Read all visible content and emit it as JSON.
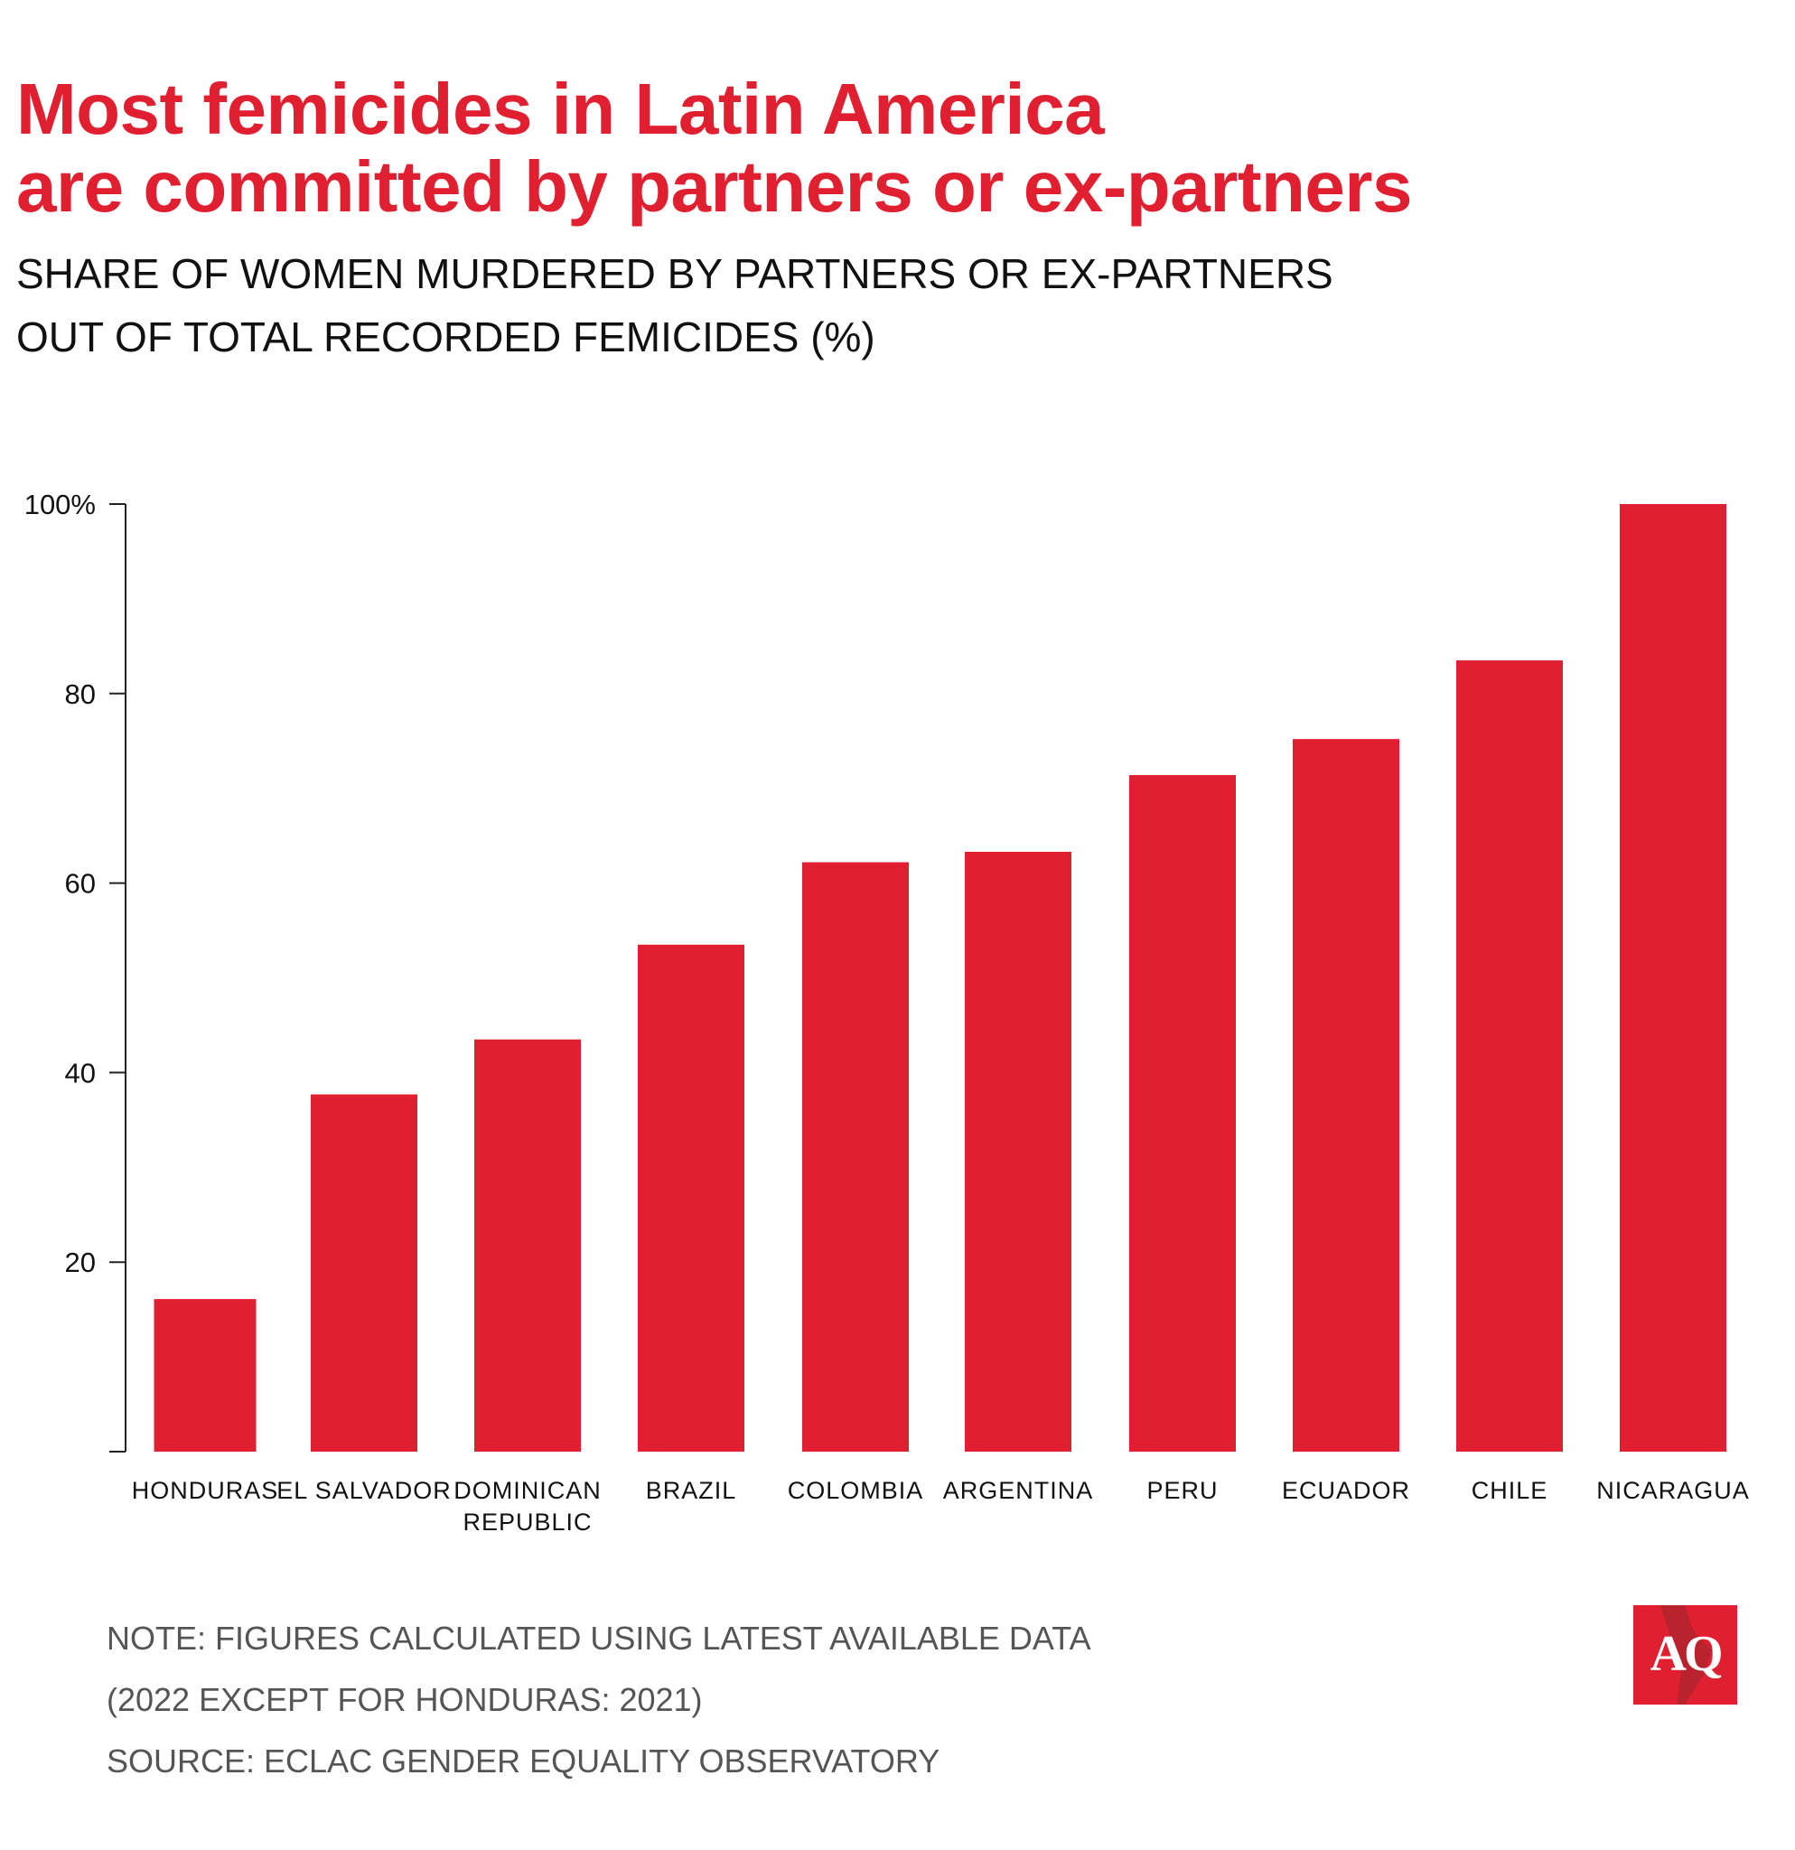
{
  "title_lines": [
    "Most femicides in Latin America",
    "are committed by partners or ex-partners"
  ],
  "subtitle_lines": [
    "SHARE OF WOMEN MURDERED BY PARTNERS OR EX-PARTNERS",
    "OUT OF TOTAL RECORDED FEMICIDES (%)"
  ],
  "notes": [
    "NOTE: FIGURES CALCULATED USING LATEST AVAILABLE DATA",
    "(2022 EXCEPT FOR HONDURAS: 2021)",
    "SOURCE: ECLAC GENDER EQUALITY OBSERVATORY"
  ],
  "logo_text": "AQ",
  "colors": {
    "accent": "#e02030",
    "text": "#111111",
    "note": "#555555"
  },
  "chart_data": {
    "type": "bar",
    "title": "Most femicides in Latin America are committed by partners or ex-partners",
    "subtitle": "SHARE OF WOMEN MURDERED BY PARTNERS OR EX-PARTNERS OUT OF TOTAL RECORDED FEMICIDES (%)",
    "categories": [
      "HONDURAS",
      "EL SALVADOR",
      "DOMINICAN REPUBLIC",
      "BRAZIL",
      "COLOMBIA",
      "ARGENTINA",
      "PERU",
      "ECUADOR",
      "CHILE",
      "NICARAGUA"
    ],
    "category_lines": [
      [
        "HONDURAS"
      ],
      [
        "EL SALVADOR"
      ],
      [
        "DOMINICAN",
        "REPUBLIC"
      ],
      [
        "BRAZIL"
      ],
      [
        "COLOMBIA"
      ],
      [
        "ARGENTINA"
      ],
      [
        "PERU"
      ],
      [
        "ECUADOR"
      ],
      [
        "CHILE"
      ],
      [
        "NICARAGUA"
      ]
    ],
    "values": [
      16.1,
      37.7,
      43.5,
      53.5,
      62.2,
      63.3,
      71.4,
      75.2,
      83.5,
      100
    ],
    "ylim": [
      0,
      100
    ],
    "yticks": [
      0,
      20,
      40,
      60,
      80,
      100
    ],
    "ytick_labels": [
      "",
      "20",
      "40",
      "60",
      "80",
      "100%"
    ],
    "xlabel": "",
    "ylabel": "",
    "grid": false,
    "bar_color": "#e02030"
  }
}
